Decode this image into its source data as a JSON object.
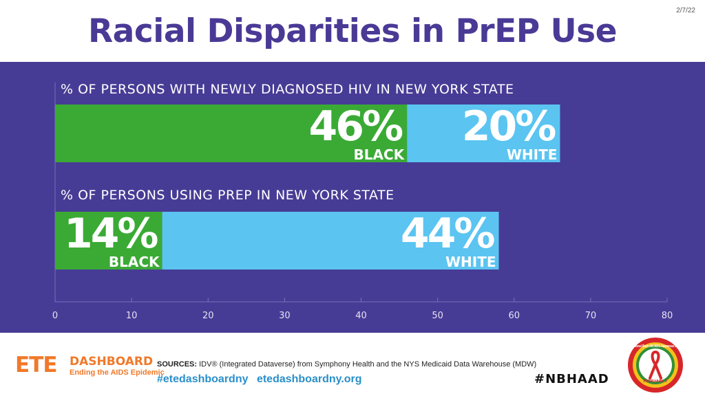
{
  "date": "2/7/22",
  "title": "Racial Disparities in PrEP Use",
  "colors": {
    "black_series": "#3aaa35",
    "white_series": "#5bc4f1",
    "panel": "#473c95",
    "title": "#4a3a96",
    "accent": "#f0792a"
  },
  "chart_data": {
    "type": "bar",
    "orientation": "horizontal",
    "stacked": true,
    "xlim": [
      0,
      80
    ],
    "xticks": [
      "0",
      "10",
      "20",
      "30",
      "40",
      "50",
      "60",
      "70",
      "80"
    ],
    "grid": true,
    "rows": [
      {
        "caption": "% OF PERSONS WITH NEWLY DIAGNOSED HIV IN NEW YORK STATE",
        "segments": [
          {
            "name": "BLACK",
            "value": 46,
            "label": "46%"
          },
          {
            "name": "WHITE",
            "value": 20,
            "label": "20%"
          }
        ]
      },
      {
        "caption": "% OF PERSONS USING PREP IN NEW YORK STATE",
        "segments": [
          {
            "name": "BLACK",
            "value": 14,
            "label": "14%"
          },
          {
            "name": "WHITE",
            "value": 44,
            "label": "44%"
          }
        ]
      }
    ]
  },
  "footer": {
    "logo_main": "ETE",
    "logo_sub": "DASHBOARD",
    "logo_tagline": "Ending the AIDS Epidemic",
    "sources_label": "SOURCES:",
    "sources_text": "IDV® (Integrated Dataverse) from Symphony Health and the NYS Medicaid Data Warehouse (MDW)",
    "hashtag_link": "#etedashboardny",
    "site_link": "etedashboardny.org",
    "hashtag": "#NBHAAD",
    "badge_text": "National Black HIV/AIDS Awareness Day",
    "badge_date": "FEBRUARY 7"
  }
}
